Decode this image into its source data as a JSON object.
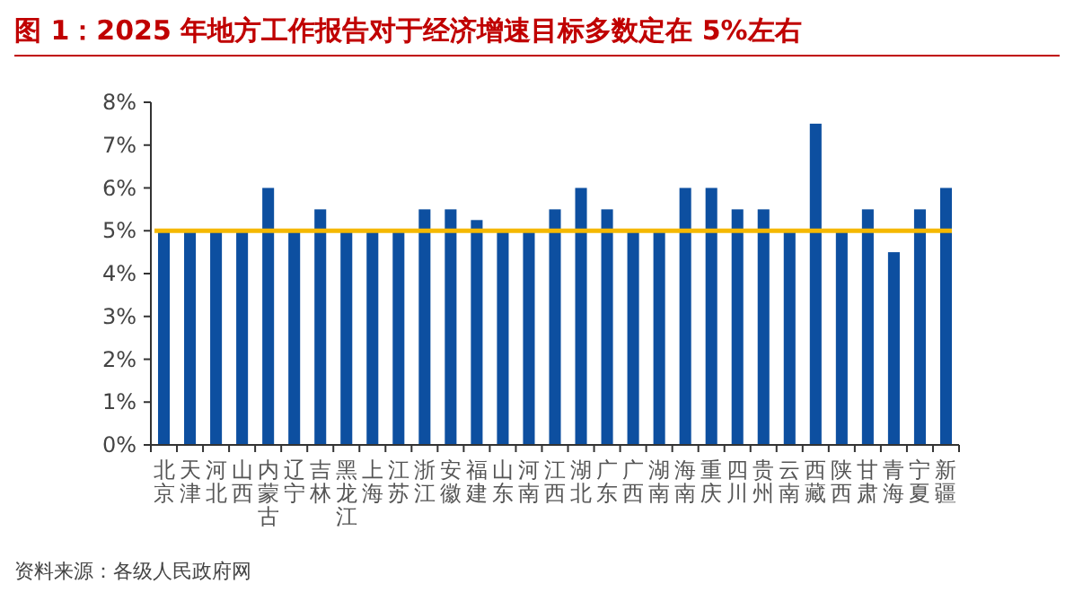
{
  "chart_data": {
    "type": "bar",
    "title": "图 1：2025 年地方工作报告对于经济增速目标多数定在 5%左右",
    "categories": [
      "北京",
      "天津",
      "河北",
      "山西",
      "内蒙古",
      "辽宁",
      "吉林",
      "黑龙江",
      "上海",
      "江苏",
      "浙江",
      "安徽",
      "福建",
      "山东",
      "河南",
      "江西",
      "湖北",
      "广东",
      "广西",
      "湖南",
      "海南",
      "重庆",
      "四川",
      "贵州",
      "云南",
      "西藏",
      "陕西",
      "甘肃",
      "青海",
      "宁夏",
      "新疆"
    ],
    "values": [
      5,
      5,
      5,
      5,
      6,
      5,
      5.5,
      5,
      5,
      5,
      5.5,
      5.5,
      5.25,
      5,
      5,
      5.5,
      6,
      5.5,
      5,
      5,
      6,
      6,
      5.5,
      5.5,
      5,
      7.5,
      5,
      5.5,
      4.5,
      5.5,
      6
    ],
    "color": "#0d4fa0",
    "ylim": [
      0,
      8
    ],
    "yticks": [
      {
        "value": 0,
        "label": "0%"
      },
      {
        "value": 1,
        "label": "1%"
      },
      {
        "value": 2,
        "label": "2%"
      },
      {
        "value": 3,
        "label": "3%"
      },
      {
        "value": 4,
        "label": "4%"
      },
      {
        "value": 5,
        "label": "5%"
      },
      {
        "value": 6,
        "label": "6%"
      },
      {
        "value": 7,
        "label": "7%"
      },
      {
        "value": 8,
        "label": "8%"
      }
    ],
    "ref_lines": [
      {
        "axis": "y",
        "value": 5,
        "color": "#f5b800"
      }
    ],
    "annotations": [
      "资料来源：各级人民政府网"
    ]
  }
}
